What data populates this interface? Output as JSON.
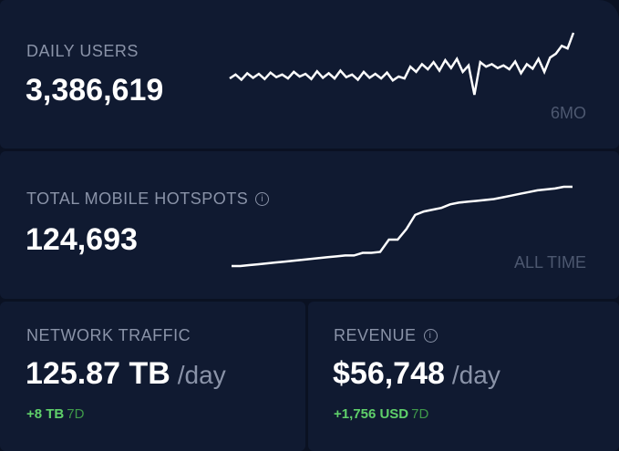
{
  "cards": [
    {
      "label": "DAILY USERS",
      "value": "3,386,619",
      "range": "6MO",
      "sparkline": [
        30,
        36,
        28,
        38,
        31,
        37,
        29,
        39,
        32,
        36,
        30,
        40,
        33,
        37,
        29,
        41,
        31,
        38,
        30,
        42,
        32,
        36,
        28,
        40,
        31,
        37,
        30,
        39,
        27,
        33,
        30,
        48,
        40,
        52,
        44,
        55,
        42,
        58,
        46,
        60,
        40,
        50,
        5,
        55,
        48,
        52,
        46,
        50,
        44,
        56,
        38,
        52,
        45,
        60,
        40,
        62,
        68,
        80,
        76,
        100
      ]
    },
    {
      "label": "TOTAL MOBILE HOTSPOTS",
      "value": "124,693",
      "range": "ALL TIME",
      "sparkline": [
        0,
        0,
        1,
        2,
        3,
        4,
        5,
        6,
        7,
        8,
        9,
        10,
        11,
        12,
        12,
        15,
        15,
        16,
        30,
        30,
        42,
        58,
        62,
        64,
        66,
        70,
        72,
        73,
        74,
        75,
        76,
        78,
        80,
        82,
        84,
        86,
        87,
        88,
        90,
        90
      ]
    },
    {
      "label": "NETWORK TRAFFIC",
      "value": "125.87 TB",
      "unit": "/day",
      "change": "+8 TB",
      "period": "7D"
    },
    {
      "label": "REVENUE",
      "value": "$56,748",
      "unit": "/day",
      "change": "+1,756 USD",
      "period": "7D"
    }
  ]
}
